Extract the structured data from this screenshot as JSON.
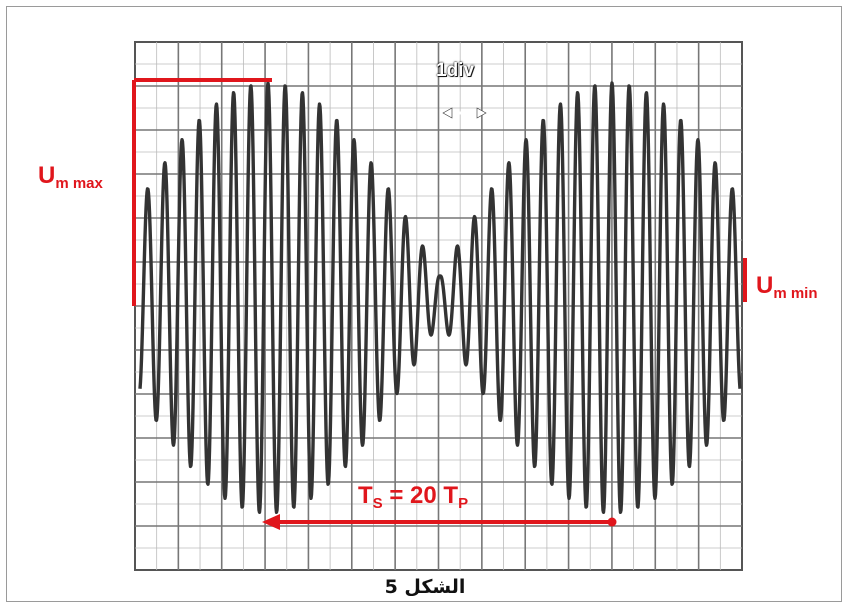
{
  "labels": {
    "u_max_main": "U",
    "u_max_sub": "m max",
    "u_min_main": "U",
    "u_min_sub": "m min",
    "ts_main": "T",
    "ts_sub": "S",
    "ts_mid": " = 20 T",
    "ts_end_sub": "P",
    "division": "1div"
  },
  "caption": "الشكل 5",
  "colors": {
    "annotation": "#e0161c",
    "signal": "#333333",
    "grid": "#777777"
  },
  "signal": {
    "beat_period_in_carrier_periods": 20,
    "relative_min_amplitude": 0.1
  }
}
